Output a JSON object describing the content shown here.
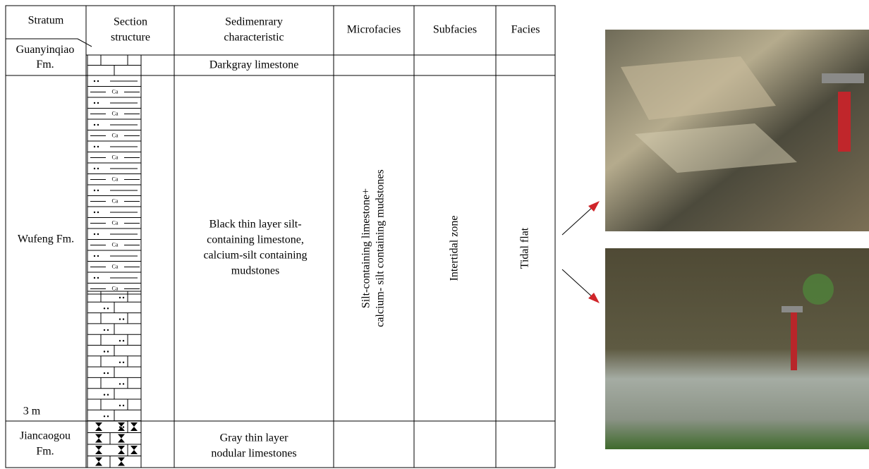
{
  "header": {
    "stratum": "Stratum",
    "section": [
      "Section",
      "structure"
    ],
    "sedimentary": [
      "Sedimenrary",
      "characteristic"
    ],
    "microfacies": "Microfacies",
    "subfacies": "Subfacies",
    "facies": "Facies"
  },
  "pattern_label": "Ca",
  "rows": [
    {
      "stratum": [
        "Guanyinqiao",
        "Fm."
      ],
      "sedimentary": [
        "Darkgray limestone"
      ]
    },
    {
      "stratum": [
        "Wufeng Fm."
      ],
      "sedimentary": [
        "Black thin layer silt-",
        "containing limestone,",
        "calcium-silt containing",
        "mudstones"
      ],
      "scale": "3 m",
      "microfacies": [
        "Silt-containing limestone+",
        "calcium- silt containing mudstones"
      ],
      "subfacies": "Intertidal zone",
      "facies": "Tidal flat"
    },
    {
      "stratum": [
        "Jiancaogou",
        "Fm."
      ],
      "sedimentary": [
        "Gray thin layer",
        "nodular limestones"
      ]
    }
  ]
}
